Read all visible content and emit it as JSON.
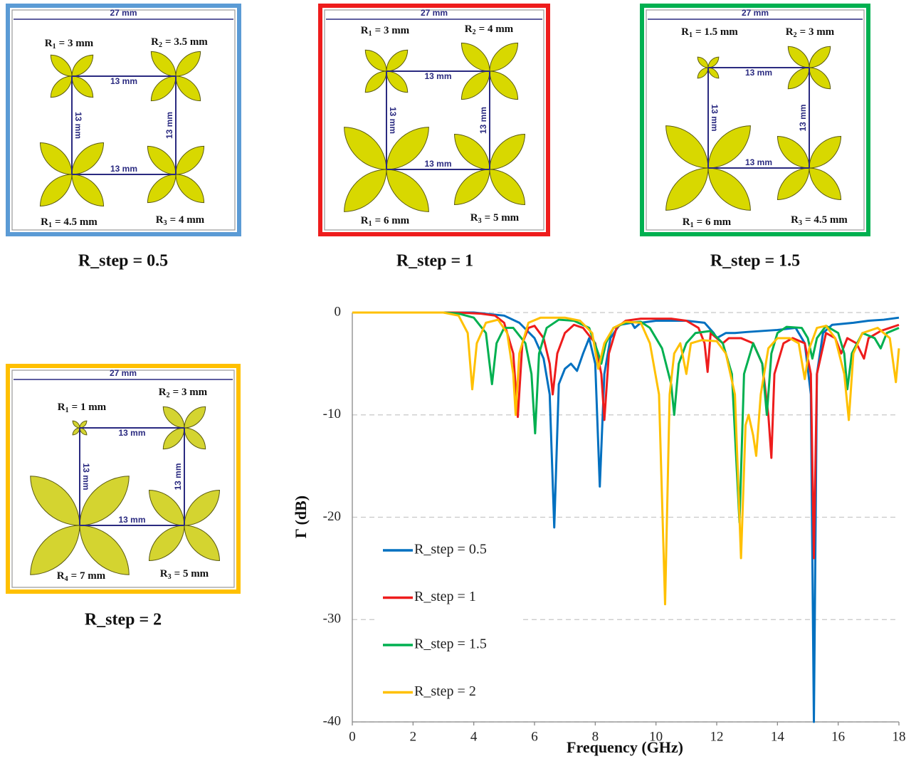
{
  "panels": [
    {
      "caption": "R_step = 0.5",
      "border_color": "#5b9bd5",
      "petal_color": "#d8d800",
      "width_label": "27 mm",
      "spacing_labels": [
        "13 mm",
        "13 mm",
        "13 mm",
        "13 mm"
      ],
      "radii": [
        {
          "symbol": "R",
          "subscript": "1",
          "text": "= 3 mm"
        },
        {
          "symbol": "R",
          "subscript": "2",
          "text": "= 3.5 mm"
        },
        {
          "symbol": "R",
          "subscript": "1",
          "text": "= 4.5 mm"
        },
        {
          "symbol": "R",
          "subscript": "3",
          "text": "= 4 mm"
        }
      ]
    },
    {
      "caption": "R_step = 1",
      "border_color": "#ee1c1c",
      "petal_color": "#d8d800",
      "width_label": "27 mm",
      "spacing_labels": [
        "13 mm",
        "13 mm",
        "13 mm",
        "13 mm"
      ],
      "radii": [
        {
          "symbol": "R",
          "subscript": "1",
          "text": "= 3 mm"
        },
        {
          "symbol": "R",
          "subscript": "2",
          "text": "= 4 mm"
        },
        {
          "symbol": "R",
          "subscript": "1",
          "text": "= 6 mm"
        },
        {
          "symbol": "R",
          "subscript": "3",
          "text": "= 5 mm"
        }
      ]
    },
    {
      "caption": "R_step = 1.5",
      "border_color": "#00b050",
      "petal_color": "#d8d800",
      "width_label": "27 mm",
      "spacing_labels": [
        "13 mm",
        "13 mm",
        "13 mm",
        "13 mm"
      ],
      "radii": [
        {
          "symbol": "R",
          "subscript": "1",
          "text": "= 1.5 mm"
        },
        {
          "symbol": "R",
          "subscript": "2",
          "text": "= 3 mm"
        },
        {
          "symbol": "R",
          "subscript": "1",
          "text": "= 6 mm"
        },
        {
          "symbol": "R",
          "subscript": "3",
          "text": "= 4.5 mm"
        }
      ]
    },
    {
      "caption": "R_step = 2",
      "border_color": "#ffc000",
      "petal_color": "#d4d430",
      "width_label": "27 mm",
      "spacing_labels": [
        "13 mm",
        "13 mm",
        "13 mm",
        "13 mm"
      ],
      "radii": [
        {
          "symbol": "R",
          "subscript": "1",
          "text": "= 1 mm"
        },
        {
          "symbol": "R",
          "subscript": "2",
          "text": "= 3 mm"
        },
        {
          "symbol": "R",
          "subscript": "4",
          "text": "= 7 mm"
        },
        {
          "symbol": "R",
          "subscript": "3",
          "text": "= 5 mm"
        }
      ]
    }
  ],
  "chart_data": {
    "type": "line",
    "x_label": "Frequency (GHz)",
    "y_label": "Γ (dB)",
    "xlim": [
      0,
      18
    ],
    "xticks": [
      0,
      2,
      4,
      6,
      8,
      10,
      12,
      14,
      16,
      18
    ],
    "ylim": [
      -40,
      0
    ],
    "yticks": [
      -40,
      -30,
      -20,
      -10,
      0
    ],
    "grid": true,
    "legend": "left",
    "series": [
      {
        "name": "R_step = 0.5",
        "color": "#0070c0",
        "x": [
          0,
          2,
          3,
          4,
          5,
          5.5,
          6,
          6.3,
          6.5,
          6.65,
          6.8,
          7,
          7.2,
          7.4,
          7.6,
          7.8,
          8,
          8.15,
          8.3,
          8.5,
          8.8,
          9.2,
          9.3,
          9.5,
          10,
          11,
          11.6,
          11.9,
          12,
          12.3,
          12.6,
          13,
          14,
          14.6,
          14.9,
          15.1,
          15.2,
          15.3,
          15.5,
          15.8,
          16.5,
          17,
          17.5,
          18
        ],
        "values": [
          0,
          0,
          0,
          0,
          -0.3,
          -1,
          -2.5,
          -4.5,
          -8,
          -21,
          -7,
          -5.5,
          -5,
          -5.7,
          -4,
          -2.5,
          -5,
          -17,
          -6,
          -2.5,
          -1.2,
          -1,
          -1.5,
          -1,
          -0.8,
          -0.8,
          -1,
          -2,
          -2.5,
          -2,
          -2,
          -1.9,
          -1.7,
          -1.5,
          -3,
          -8,
          -40,
          -6,
          -2,
          -1.2,
          -1,
          -0.8,
          -0.7,
          -0.5
        ]
      },
      {
        "name": "R_step = 1",
        "color": "#ee1c1c",
        "x": [
          0,
          3.5,
          4.2,
          4.7,
          5,
          5.3,
          5.45,
          5.6,
          5.8,
          6,
          6.3,
          6.5,
          6.6,
          6.75,
          7,
          7.3,
          7.6,
          8,
          8.2,
          8.3,
          8.45,
          8.7,
          9,
          9.5,
          10.5,
          11,
          11.4,
          11.6,
          11.7,
          11.8,
          12,
          12.2,
          12.4,
          12.8,
          13.2,
          13.5,
          13.7,
          13.8,
          13.9,
          14.2,
          14.5,
          14.9,
          15.1,
          15.2,
          15.3,
          15.6,
          15.9,
          16.1,
          16.3,
          16.6,
          16.85,
          17,
          17.4,
          17.7,
          18
        ],
        "values": [
          0,
          0,
          -0.1,
          -0.3,
          -1,
          -4,
          -10.2,
          -3,
          -1.5,
          -1.3,
          -2.5,
          -5,
          -8,
          -4,
          -2,
          -1.2,
          -1.5,
          -3,
          -6,
          -10.5,
          -4,
          -1.5,
          -0.8,
          -0.6,
          -0.6,
          -0.8,
          -1.5,
          -3,
          -5.8,
          -2,
          -2.5,
          -3,
          -2.5,
          -2.5,
          -3,
          -5,
          -10,
          -14.2,
          -6,
          -3,
          -2.5,
          -3,
          -6,
          -24,
          -6,
          -2,
          -2.5,
          -4,
          -2.5,
          -3,
          -4.5,
          -2.5,
          -1.8,
          -1.5,
          -1.2
        ]
      },
      {
        "name": "R_step = 1.5",
        "color": "#00b050",
        "x": [
          0,
          3,
          3.5,
          4,
          4.4,
          4.6,
          4.75,
          5,
          5.3,
          5.7,
          5.9,
          6.02,
          6.15,
          6.4,
          6.8,
          7.3,
          7.8,
          8.1,
          8.2,
          8.35,
          8.6,
          9,
          9.5,
          9.8,
          10.2,
          10.5,
          10.6,
          10.75,
          11,
          11.3,
          11.8,
          12.2,
          12.5,
          12.75,
          12.9,
          13.2,
          13.5,
          13.65,
          13.8,
          14,
          14.3,
          14.8,
          15,
          15.15,
          15.3,
          15.6,
          16,
          16.2,
          16.3,
          16.45,
          16.8,
          17.2,
          17.4,
          17.6,
          18
        ],
        "values": [
          0,
          0,
          -0.1,
          -0.5,
          -2,
          -7,
          -3,
          -1.5,
          -1.5,
          -3,
          -6,
          -11.8,
          -4,
          -1.5,
          -0.7,
          -0.8,
          -1.5,
          -4,
          -5,
          -3,
          -1.5,
          -1,
          -0.9,
          -1.5,
          -3.5,
          -7,
          -10,
          -5,
          -3,
          -2,
          -1.8,
          -3,
          -6,
          -20.5,
          -6,
          -3,
          -5,
          -10,
          -4,
          -2,
          -1.4,
          -1.5,
          -2.5,
          -4.5,
          -2.5,
          -1.3,
          -2,
          -4,
          -7.5,
          -4,
          -2,
          -2.5,
          -3.5,
          -2,
          -1.5
        ]
      },
      {
        "name": "R_step = 2",
        "color": "#ffc000",
        "x": [
          0,
          3,
          3.5,
          3.8,
          3.95,
          4.1,
          4.4,
          4.8,
          5.1,
          5.3,
          5.38,
          5.5,
          5.8,
          6.2,
          7,
          7.5,
          7.9,
          8.1,
          8.3,
          8.6,
          9,
          9.5,
          9.8,
          10.1,
          10.3,
          10.45,
          10.6,
          10.8,
          11,
          11.15,
          11.5,
          12,
          12.3,
          12.6,
          12.8,
          12.95,
          13.05,
          13.2,
          13.3,
          13.45,
          13.7,
          14,
          14.4,
          14.7,
          14.9,
          15.05,
          15.3,
          15.6,
          15.9,
          16.2,
          16.35,
          16.5,
          16.8,
          17.3,
          17.7,
          17.9,
          18
        ],
        "values": [
          0,
          0,
          -0.3,
          -2,
          -7.5,
          -3,
          -1,
          -0.7,
          -2,
          -6,
          -10,
          -4,
          -1,
          -0.5,
          -0.5,
          -0.8,
          -2,
          -5.5,
          -3,
          -1.5,
          -0.9,
          -1,
          -3,
          -8,
          -28.5,
          -8,
          -4,
          -3,
          -6,
          -3,
          -2.7,
          -2.8,
          -4,
          -8,
          -24,
          -11,
          -10,
          -12,
          -14,
          -8,
          -3.5,
          -2.5,
          -2.5,
          -3,
          -6.5,
          -3.5,
          -1.5,
          -1.3,
          -2.5,
          -6,
          -10.5,
          -4,
          -2,
          -1.5,
          -2.5,
          -6.8,
          -3.5
        ]
      }
    ]
  }
}
